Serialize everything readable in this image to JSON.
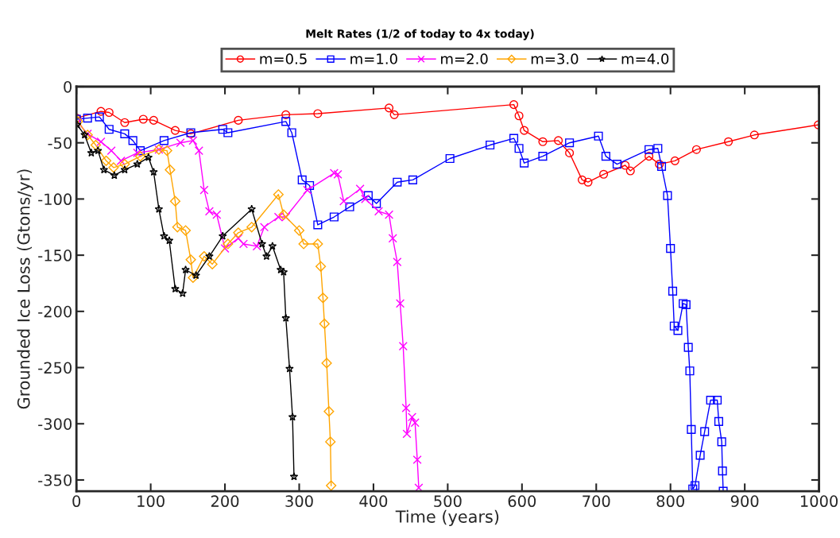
{
  "chart_data": {
    "type": "line",
    "title": "Melt Rates (1/2 of today to 4x today)",
    "xlabel": "Time (years)",
    "ylabel": "Grounded Ice Loss (Gtons/yr)",
    "xlim": [
      0,
      1000
    ],
    "xticks": [
      0,
      100,
      200,
      300,
      400,
      500,
      600,
      700,
      800,
      900,
      1000
    ],
    "ylim": [
      -360,
      0
    ],
    "yticks": [
      -350,
      -300,
      -250,
      -200,
      -150,
      -100,
      -50,
      0
    ],
    "grid": false,
    "legend": "top",
    "line_style": "solid",
    "series": [
      {
        "name": "m=0.5",
        "color": "#ff0000",
        "marker": "circle",
        "x": [
          0,
          33,
          44,
          65,
          90,
          104,
          133,
          154,
          218,
          282,
          325,
          421,
          428,
          589,
          596,
          603,
          628,
          649,
          664,
          681,
          689,
          710,
          739,
          746,
          771,
          785,
          806,
          835,
          878,
          913,
          999
        ],
        "values": [
          -28,
          -22,
          -23,
          -32,
          -29,
          -30,
          -39,
          -42,
          -30,
          -25,
          -24,
          -19,
          -25,
          -16,
          -26,
          -39,
          -49,
          -48,
          -59,
          -83,
          -85,
          -78,
          -70,
          -75,
          -62,
          -69,
          -66,
          -56,
          -49,
          -43,
          -34
        ]
      },
      {
        "name": "m=1.0",
        "color": "#0000ff",
        "marker": "square",
        "x": [
          0,
          15,
          31,
          44,
          65,
          76,
          86,
          118,
          154,
          197,
          204,
          282,
          290,
          304,
          314,
          325,
          347,
          368,
          393,
          404,
          432,
          453,
          503,
          557,
          589,
          596,
          603,
          628,
          664,
          703,
          713,
          728,
          771,
          783,
          788,
          796,
          800,
          803,
          805,
          810,
          817,
          821,
          824,
          826,
          828,
          830,
          833,
          840,
          846,
          854,
          863,
          865,
          869,
          870,
          871
        ],
        "values": [
          -29,
          -28,
          -27,
          -38,
          -42,
          -48,
          -57,
          -48,
          -41,
          -38,
          -41,
          -31,
          -41,
          -83,
          -88,
          -123,
          -116,
          -107,
          -97,
          -104,
          -85,
          -83,
          -64,
          -52,
          -46,
          -55,
          -68,
          -62,
          -50,
          -44,
          -62,
          -69,
          -56,
          -55,
          -71,
          -97,
          -144,
          -182,
          -213,
          -217,
          -193,
          -194,
          -232,
          -253,
          -305,
          -358,
          -355,
          -328,
          -307,
          -279,
          -279,
          -298,
          -316,
          -342,
          -360
        ]
      },
      {
        "name": "m=2.0",
        "color": "#ff00ff",
        "marker": "cross",
        "x": [
          2,
          15,
          33,
          47,
          60,
          82,
          111,
          140,
          157,
          165,
          172,
          179,
          189,
          200,
          218,
          225,
          243,
          253,
          272,
          282,
          311,
          347,
          352,
          360,
          382,
          389,
          407,
          421,
          426,
          432,
          436,
          440,
          444,
          445,
          452,
          456,
          459,
          461
        ],
        "values": [
          -32,
          -42,
          -49,
          -57,
          -66,
          -59,
          -56,
          -50,
          -48,
          -57,
          -92,
          -111,
          -114,
          -144,
          -135,
          -140,
          -142,
          -125,
          -116,
          -116,
          -92,
          -77,
          -78,
          -102,
          -91,
          -100,
          -111,
          -114,
          -135,
          -156,
          -193,
          -231,
          -286,
          -309,
          -294,
          -299,
          -332,
          -357
        ]
      },
      {
        "name": "m=3.0",
        "color": "#ffa500",
        "marker": "diamond",
        "x": [
          2,
          15,
          26,
          40,
          50,
          65,
          86,
          111,
          122,
          126,
          133,
          136,
          147,
          154,
          157,
          172,
          183,
          204,
          218,
          236,
          272,
          279,
          300,
          306,
          325,
          329,
          332,
          334,
          337,
          340,
          342,
          343
        ],
        "values": [
          -31,
          -43,
          -52,
          -66,
          -72,
          -69,
          -62,
          -56,
          -57,
          -74,
          -102,
          -125,
          -128,
          -154,
          -170,
          -151,
          -158,
          -140,
          -130,
          -125,
          -96,
          -114,
          -128,
          -140,
          -140,
          -160,
          -188,
          -211,
          -246,
          -289,
          -316,
          -355
        ]
      },
      {
        "name": "m=4.0",
        "color": "#000000",
        "marker": "star",
        "x": [
          1,
          11,
          20,
          29,
          37,
          51,
          65,
          82,
          97,
          104,
          111,
          118,
          125,
          133,
          143,
          147,
          161,
          179,
          197,
          236,
          250,
          256,
          264,
          275,
          279,
          282,
          287,
          291,
          293
        ],
        "values": [
          -34,
          -43,
          -59,
          -57,
          -74,
          -79,
          -74,
          -69,
          -63,
          -76,
          -109,
          -133,
          -137,
          -180,
          -184,
          -163,
          -168,
          -151,
          -133,
          -109,
          -140,
          -151,
          -142,
          -163,
          -165,
          -206,
          -251,
          -294,
          -347
        ]
      }
    ]
  }
}
